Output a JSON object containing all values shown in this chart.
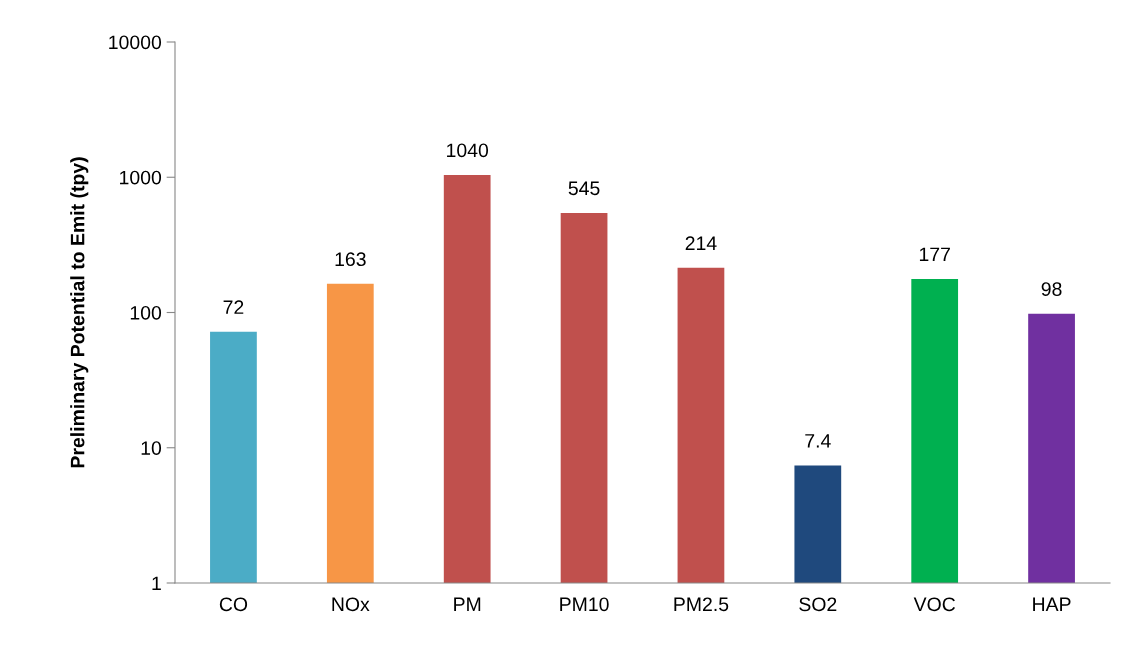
{
  "chart_data": {
    "type": "bar",
    "ylabel": "Preliminary Potential to Emit (tpy)",
    "categories": [
      "CO",
      "NOx",
      "PM",
      "PM10",
      "PM2.5",
      "SO2",
      "VOC",
      "HAP"
    ],
    "values": [
      72,
      163,
      1040,
      545,
      214,
      7.4,
      177,
      98
    ],
    "colors": [
      "#4bacc6",
      "#f79646",
      "#c0504d",
      "#c0504d",
      "#c0504d",
      "#1f497d",
      "#00b050",
      "#7030a0"
    ],
    "log": "y",
    "ylim": [
      1,
      10000
    ],
    "yticks": [
      1,
      10,
      100,
      1000,
      10000
    ],
    "data_labels": true,
    "grid": false,
    "legend": false
  }
}
